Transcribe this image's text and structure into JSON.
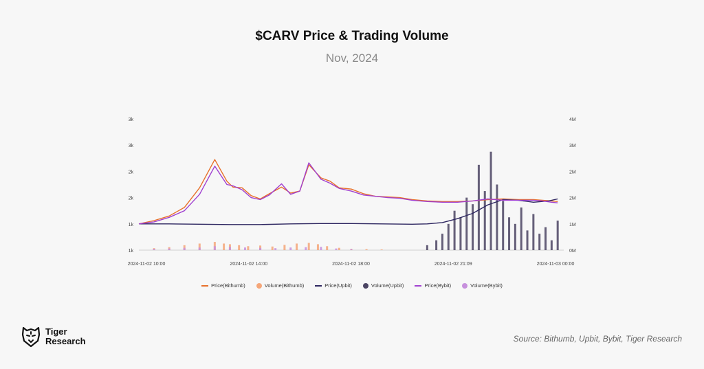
{
  "header": {
    "title": "$CARV Price & Trading Volume",
    "subtitle": "Nov, 2024"
  },
  "footer": {
    "brand_line1": "Tiger",
    "brand_line2": "Research",
    "source": "Source: Bithumb, Upbit, Bybit, Tiger Research"
  },
  "colors": {
    "bithumb": "#e8702a",
    "bithumb_volume": "#f5a679",
    "upbit": "#2d2660",
    "upbit_volume": "#4b4463",
    "bybit": "#a040d0",
    "bybit_volume": "#c790dd"
  },
  "chart_data": {
    "type": "line",
    "title": "$CARV Price & Trading Volume",
    "subtitle": "Nov, 2024",
    "x_tick_labels": [
      "2024-11-02 10:00",
      "2024-11-02 14:00",
      "2024-11-02 18:00",
      "2024-11-02 21:09",
      "2024-11-03 00:00"
    ],
    "y_left_tick_labels": [
      "1k",
      "1k",
      "2k",
      "2k",
      "3k",
      "3k"
    ],
    "y_right_tick_labels": [
      "0M",
      "1M",
      "2M",
      "2M",
      "3M",
      "4M"
    ],
    "y_left_range": [
      1000,
      3000
    ],
    "y_right_range": [
      0,
      4000000
    ],
    "x_range_hours": [
      0,
      14
    ],
    "grid": false,
    "legend_position": "bottom-center",
    "legend": [
      "Price(Bithumb)",
      "Volume(Bithumb)",
      "Price(Upbit)",
      "Volume(Upbit)",
      "Price(Bybit)",
      "Volume(Bybit)"
    ],
    "series": [
      {
        "name": "Price(Bithumb)",
        "kind": "line",
        "axis": "left",
        "color_key": "bithumb",
        "x": [
          0,
          0.5,
          1.0,
          1.5,
          2.0,
          2.5,
          2.9,
          3.1,
          3.4,
          3.7,
          4.0,
          4.3,
          4.7,
          5.0,
          5.3,
          5.6,
          6.0,
          6.3,
          6.6,
          7.0,
          7.4,
          7.8,
          8.2,
          8.6,
          9.0,
          9.5,
          10.0,
          10.5,
          11.0,
          11.5,
          12.0,
          12.5,
          13.0,
          13.3,
          13.6,
          13.8
        ],
        "y": [
          1400,
          1450,
          1520,
          1650,
          1950,
          2380,
          2050,
          1960,
          1950,
          1830,
          1780,
          1860,
          1960,
          1870,
          1900,
          2300,
          2100,
          2050,
          1950,
          1930,
          1860,
          1820,
          1810,
          1800,
          1770,
          1750,
          1740,
          1740,
          1750,
          1770,
          1780,
          1770,
          1770,
          1760,
          1750,
          1740
        ]
      },
      {
        "name": "Price(Upbit)",
        "kind": "line",
        "axis": "left",
        "color_key": "upbit",
        "x": [
          0,
          1.0,
          2.0,
          3.0,
          4.0,
          5.0,
          6.0,
          7.0,
          8.0,
          9.0,
          9.5,
          10.0,
          10.5,
          11.0,
          11.5,
          12.0,
          12.5,
          13.0,
          13.5,
          13.8
        ],
        "y": [
          1400,
          1400,
          1395,
          1390,
          1390,
          1400,
          1405,
          1405,
          1400,
          1395,
          1400,
          1420,
          1480,
          1560,
          1690,
          1770,
          1760,
          1730,
          1750,
          1780
        ]
      },
      {
        "name": "Price(Bybit)",
        "kind": "line",
        "axis": "left",
        "color_key": "bybit",
        "x": [
          0,
          0.5,
          1.0,
          1.5,
          2.0,
          2.5,
          2.9,
          3.1,
          3.4,
          3.7,
          4.0,
          4.3,
          4.7,
          5.0,
          5.3,
          5.6,
          6.0,
          6.3,
          6.6,
          7.0,
          7.4,
          7.8,
          8.2,
          8.6,
          9.0,
          9.5,
          10.0,
          10.5,
          11.0,
          11.5,
          12.0,
          12.5,
          13.0,
          13.3,
          13.6,
          13.8
        ],
        "y": [
          1400,
          1430,
          1500,
          1600,
          1850,
          2280,
          2000,
          1980,
          1920,
          1800,
          1770,
          1840,
          2010,
          1850,
          1900,
          2330,
          2080,
          2020,
          1940,
          1900,
          1840,
          1820,
          1800,
          1790,
          1760,
          1740,
          1730,
          1730,
          1750,
          1780,
          1760,
          1760,
          1760,
          1750,
          1730,
          1720
        ]
      }
    ],
    "volume_series": [
      {
        "name": "Volume(Bithumb)",
        "kind": "bar",
        "axis": "right",
        "color_key": "bithumb_volume",
        "x": [
          0.5,
          1.0,
          1.5,
          2.0,
          2.5,
          2.8,
          3.0,
          3.3,
          3.6,
          4.0,
          4.4,
          4.8,
          5.2,
          5.6,
          5.9,
          6.2,
          6.6,
          7.0,
          7.5,
          8.0
        ],
        "values": [
          60000,
          90000,
          150000,
          200000,
          250000,
          200000,
          180000,
          150000,
          120000,
          140000,
          110000,
          160000,
          200000,
          220000,
          180000,
          120000,
          70000,
          40000,
          30000,
          20000
        ]
      },
      {
        "name": "Volume(Upbit)",
        "kind": "bar",
        "axis": "right",
        "color_key": "upbit_volume",
        "x": [
          9.5,
          9.8,
          10.0,
          10.2,
          10.4,
          10.6,
          10.8,
          11.0,
          11.2,
          11.4,
          11.6,
          11.8,
          12.0,
          12.2,
          12.4,
          12.6,
          12.8,
          13.0,
          13.2,
          13.4,
          13.6,
          13.8
        ],
        "values": [
          150000,
          300000,
          500000,
          800000,
          1200000,
          1000000,
          1600000,
          1400000,
          2600000,
          1800000,
          3000000,
          2000000,
          1500000,
          1000000,
          800000,
          1300000,
          600000,
          1100000,
          500000,
          700000,
          300000,
          900000
        ]
      },
      {
        "name": "Volume(Bybit)",
        "kind": "bar",
        "axis": "right",
        "color_key": "bybit_volume",
        "x": [
          0.5,
          1.0,
          1.5,
          2.0,
          2.5,
          3.0,
          3.5,
          4.0,
          4.5,
          5.0,
          5.5,
          6.0,
          6.5,
          7.0
        ],
        "values": [
          40000,
          50000,
          70000,
          80000,
          120000,
          100000,
          80000,
          70000,
          60000,
          80000,
          90000,
          100000,
          50000,
          30000
        ]
      }
    ]
  }
}
